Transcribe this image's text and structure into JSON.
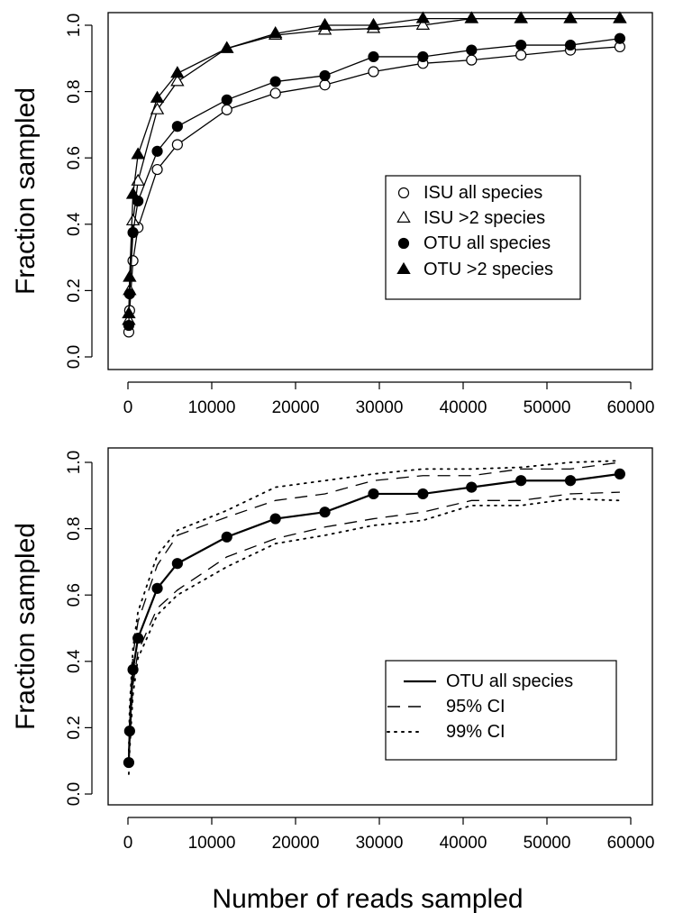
{
  "chart_data": [
    {
      "type": "line",
      "ylabel": "Fraction sampled",
      "xlim": [
        0,
        60000
      ],
      "ylim": [
        0,
        1
      ],
      "x_ticks": [
        "0",
        "10000",
        "20000",
        "30000",
        "40000",
        "50000",
        "60000"
      ],
      "y_ticks": [
        "0.0",
        "0.2",
        "0.4",
        "0.6",
        "0.8",
        "1.0"
      ],
      "grid": false,
      "legend": "center-right",
      "series": [
        {
          "name": "ISU all species",
          "marker": "open-circle",
          "line": "solid",
          "x": [
            100,
            200,
            600,
            1200,
            3500,
            5900,
            11800,
            17600,
            23500,
            29300,
            35200,
            41000,
            46900,
            52800,
            58700
          ],
          "y": [
            0.075,
            0.14,
            0.29,
            0.39,
            0.565,
            0.64,
            0.745,
            0.795,
            0.82,
            0.86,
            0.885,
            0.895,
            0.91,
            0.925,
            0.935
          ]
        },
        {
          "name": "ISU >2 species",
          "marker": "open-triangle",
          "line": "solid",
          "x": [
            100,
            200,
            600,
            1200,
            3500,
            5900,
            11800,
            17600,
            23500,
            29300,
            35200,
            41000,
            46900,
            52800,
            58700
          ],
          "y": [
            0.11,
            0.2,
            0.41,
            0.53,
            0.745,
            0.83,
            0.93,
            0.97,
            0.985,
            0.99,
            1.0,
            1.02,
            1.02,
            1.02,
            1.02
          ]
        },
        {
          "name": "OTU all species",
          "marker": "filled-circle",
          "line": "solid",
          "x": [
            100,
            200,
            600,
            1200,
            3500,
            5900,
            11800,
            17600,
            23500,
            29300,
            35200,
            41000,
            46900,
            52800,
            58700
          ],
          "y": [
            0.095,
            0.19,
            0.375,
            0.47,
            0.62,
            0.695,
            0.775,
            0.83,
            0.848,
            0.905,
            0.905,
            0.925,
            0.94,
            0.94,
            0.96
          ]
        },
        {
          "name": "OTU >2 species",
          "marker": "filled-triangle",
          "line": "solid",
          "x": [
            100,
            200,
            600,
            1200,
            3500,
            5900,
            11800,
            17600,
            23500,
            29300,
            35200,
            41000,
            46900,
            52800,
            58700
          ],
          "y": [
            0.13,
            0.24,
            0.49,
            0.61,
            0.78,
            0.855,
            0.93,
            0.975,
            1.0,
            1.0,
            1.02,
            1.02,
            1.02,
            1.02,
            1.02
          ]
        }
      ]
    },
    {
      "type": "line",
      "ylabel": "Fraction sampled",
      "xlabel": "Number of reads sampled",
      "xlim": [
        0,
        60000
      ],
      "ylim": [
        0,
        1
      ],
      "x_ticks": [
        "0",
        "10000",
        "20000",
        "30000",
        "40000",
        "50000",
        "60000"
      ],
      "y_ticks": [
        "0.0",
        "0.2",
        "0.4",
        "0.6",
        "0.8",
        "1.0"
      ],
      "grid": false,
      "legend": "bottom-right",
      "series": [
        {
          "name": "OTU all species",
          "marker": "filled-circle",
          "line": "solid",
          "x": [
            100,
            200,
            600,
            1200,
            3500,
            5900,
            11800,
            17600,
            23500,
            29300,
            35200,
            41000,
            46900,
            52800,
            58700
          ],
          "y": [
            0.095,
            0.19,
            0.375,
            0.47,
            0.62,
            0.695,
            0.775,
            0.83,
            0.85,
            0.905,
            0.905,
            0.925,
            0.945,
            0.945,
            0.965
          ]
        },
        {
          "name": "95% CI",
          "marker": "none",
          "line": "dashed",
          "x": [
            100,
            200,
            600,
            1200,
            3500,
            5900,
            11800,
            17600,
            23500,
            29300,
            35200,
            41000,
            46900,
            52800,
            58700
          ],
          "y": [
            0.08,
            0.15,
            0.33,
            0.43,
            0.56,
            0.615,
            0.715,
            0.77,
            0.805,
            0.83,
            0.85,
            0.885,
            0.885,
            0.905,
            0.91
          ]
        },
        {
          "name": "95% CI",
          "marker": "none",
          "line": "dashed",
          "x": [
            100,
            200,
            600,
            1200,
            3500,
            5900,
            11800,
            17600,
            23500,
            29300,
            35200,
            41000,
            46900,
            52800,
            58700
          ],
          "y": [
            0.12,
            0.23,
            0.42,
            0.52,
            0.69,
            0.78,
            0.835,
            0.885,
            0.905,
            0.945,
            0.96,
            0.96,
            0.98,
            0.98,
            1.0
          ]
        },
        {
          "name": "99% CI",
          "marker": "none",
          "line": "dotted",
          "x": [
            100,
            200,
            600,
            1200,
            3500,
            5900,
            11800,
            17600,
            23500,
            29300,
            35200,
            41000,
            46900,
            52800,
            58700
          ],
          "y": [
            0.06,
            0.13,
            0.3,
            0.41,
            0.54,
            0.6,
            0.685,
            0.755,
            0.78,
            0.81,
            0.825,
            0.87,
            0.87,
            0.89,
            0.885
          ]
        },
        {
          "name": "99% CI",
          "marker": "none",
          "line": "dotted",
          "x": [
            100,
            200,
            600,
            1200,
            3500,
            5900,
            11800,
            17600,
            23500,
            29300,
            35200,
            41000,
            46900,
            52800,
            58700
          ],
          "y": [
            0.13,
            0.26,
            0.44,
            0.55,
            0.72,
            0.795,
            0.855,
            0.925,
            0.945,
            0.965,
            0.98,
            0.98,
            0.985,
            1.0,
            1.005
          ]
        }
      ]
    }
  ]
}
